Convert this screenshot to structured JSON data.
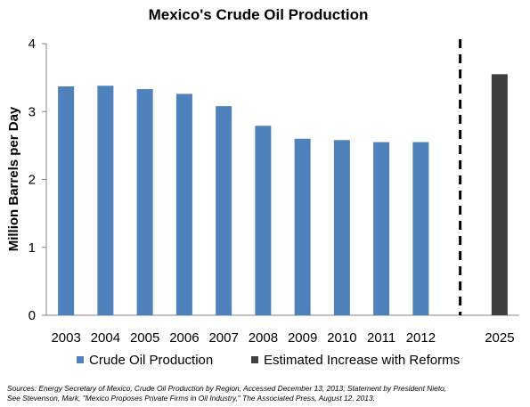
{
  "chart_data": {
    "type": "bar",
    "title": "Mexico's Crude Oil Production",
    "ylabel": "Million Barrels per Day",
    "xlabel": "",
    "ylim": [
      0,
      4
    ],
    "yticks": [
      0,
      1,
      2,
      3,
      4
    ],
    "grid": false,
    "legend_placement": "bottom",
    "categories": [
      "2003",
      "2004",
      "2005",
      "2006",
      "2007",
      "2008",
      "2009",
      "2010",
      "2011",
      "2012",
      "",
      "2025"
    ],
    "series": [
      {
        "name": "Crude Oil Production",
        "color": "#4f81bd",
        "values": [
          3.37,
          3.38,
          3.33,
          3.26,
          3.08,
          2.79,
          2.6,
          2.58,
          2.55,
          2.55,
          null,
          null
        ]
      },
      {
        "name": "Estimated Increase with Reforms",
        "color": "#404040",
        "values": [
          null,
          null,
          null,
          null,
          null,
          null,
          null,
          null,
          null,
          null,
          null,
          3.55
        ]
      }
    ],
    "annotations": [
      {
        "type": "vertical-dashed-line",
        "between": [
          "2012",
          "2025"
        ]
      }
    ]
  },
  "source_lines": [
    "Sources: Energy Secretary of Mexico, Crude Oil Production by Region, Accessed December 13, 2013; Statement by President Nieto,",
    "See Stevenson, Mark, \"Mexico Proposes Private Firms in Oil Industry,\" The Associated Press, August 12, 2013."
  ]
}
